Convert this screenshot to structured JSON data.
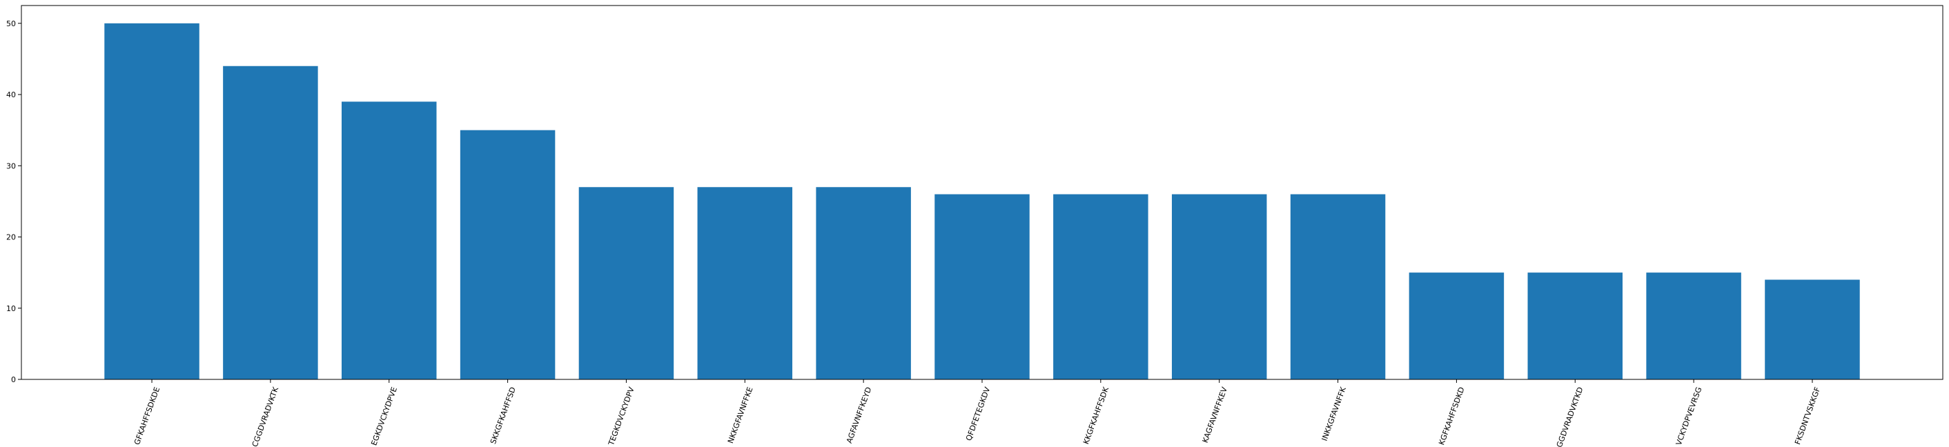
{
  "chart_data": {
    "type": "bar",
    "title": "",
    "xlabel": "",
    "ylabel": "",
    "categories": [
      "GFKAHFFSDKDE",
      "CGGDVRADVKTK",
      "EGKDVCKYDPVE",
      "SKKGFKAHFFSD",
      "TEGKDVCKYDPV",
      "NKKGFAVNFFKE",
      "AGFAVNFFKEYD",
      "QFDFETEGKDV",
      "KKGFKAHFFSDK",
      "KAGFAVNFFKEV",
      "INKKGFAVNFFK",
      "KGFKAHFFSDKD",
      "GGDVRADVKTKD",
      "VCKYDPVEVRSG",
      "FKSDNTVSKKGF"
    ],
    "values": [
      50,
      44,
      39,
      35,
      27,
      27,
      27,
      26,
      26,
      26,
      26,
      15,
      15,
      15,
      14
    ],
    "ylim": [
      0,
      52.5
    ],
    "yticks": [
      0,
      10,
      20,
      30,
      40,
      50
    ],
    "bar_color": "#1f77b4",
    "grid": false,
    "legend": "none"
  }
}
